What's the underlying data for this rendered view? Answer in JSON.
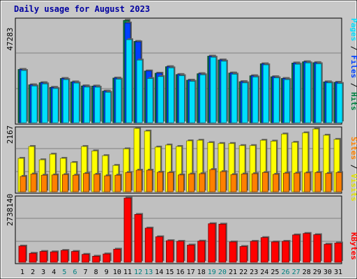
{
  "chart_data": [
    {
      "type": "bar",
      "panel": "hits-files-pages",
      "title": "Daily usage for August 2023",
      "y_max_label": "47283",
      "ylim": [
        0,
        47283
      ],
      "right_legend": [
        "Pages",
        "Files",
        "Hits"
      ],
      "colors": {
        "hits": "#008040",
        "files": "#0040ff",
        "pages": "#00e0ff"
      },
      "categories": [
        "1",
        "2",
        "3",
        "4",
        "5",
        "6",
        "7",
        "8",
        "9",
        "10",
        "11",
        "12",
        "13",
        "14",
        "15",
        "16",
        "17",
        "18",
        "19",
        "20",
        "21",
        "22",
        "23",
        "24",
        "25",
        "26",
        "27",
        "28",
        "29",
        "30",
        "31"
      ],
      "series": [
        {
          "name": "Hits",
          "values": [
            24570,
            17480,
            18450,
            16300,
            20400,
            18830,
            16980,
            16910,
            14570,
            20600,
            47200,
            37500,
            23860,
            22830,
            25830,
            22230,
            19630,
            22600,
            30690,
            28960,
            22920,
            18940,
            21650,
            27170,
            21200,
            20410,
            27530,
            28100,
            27700,
            18840,
            18640
          ]
        },
        {
          "name": "Files",
          "values": [
            24570,
            17480,
            18450,
            16300,
            20400,
            18830,
            16980,
            16910,
            14570,
            20600,
            46000,
            37300,
            23860,
            22830,
            25830,
            22230,
            19630,
            22600,
            30690,
            28960,
            22920,
            18940,
            21650,
            27170,
            21200,
            20410,
            27530,
            28100,
            27700,
            18840,
            18640
          ]
        },
        {
          "name": "Pages",
          "values": [
            24100,
            16950,
            17920,
            15800,
            19900,
            18300,
            16450,
            16400,
            14050,
            20100,
            38300,
            28900,
            20400,
            21300,
            25300,
            21700,
            19100,
            22100,
            30200,
            28400,
            22400,
            18400,
            21100,
            26700,
            20700,
            19900,
            27000,
            27600,
            27200,
            18400,
            18100
          ]
        }
      ]
    },
    {
      "type": "bar",
      "panel": "visits-sites",
      "y_max_label": "2167",
      "ylim": [
        0,
        2167
      ],
      "right_legend": [
        "Sites",
        "Visits"
      ],
      "colors": {
        "visits": "#ffff00",
        "sites": "#ff8000"
      },
      "categories": [
        "1",
        "2",
        "3",
        "4",
        "5",
        "6",
        "7",
        "8",
        "9",
        "10",
        "11",
        "12",
        "13",
        "14",
        "15",
        "16",
        "17",
        "18",
        "19",
        "20",
        "21",
        "22",
        "23",
        "24",
        "25",
        "26",
        "27",
        "28",
        "29",
        "30",
        "31"
      ],
      "series": [
        {
          "name": "Visits",
          "values": [
            1130,
            1530,
            1080,
            1270,
            1130,
            990,
            1530,
            1380,
            1220,
            890,
            1450,
            2140,
            2050,
            1510,
            1580,
            1530,
            1720,
            1740,
            1660,
            1630,
            1630,
            1560,
            1560,
            1740,
            1710,
            1950,
            1670,
            1990,
            2120,
            1910,
            1770
          ]
        },
        {
          "name": "Sites",
          "values": [
            520,
            600,
            560,
            570,
            580,
            560,
            620,
            590,
            540,
            560,
            650,
            730,
            730,
            660,
            650,
            570,
            600,
            610,
            750,
            680,
            580,
            600,
            610,
            650,
            590,
            630,
            630,
            640,
            650,
            620,
            650
          ]
        }
      ]
    },
    {
      "type": "bar",
      "panel": "kbytes",
      "y_max_label": "2738140",
      "ylim": [
        0,
        2738140
      ],
      "right_legend": [
        "KBytes"
      ],
      "colors": {
        "kbytes": "#ff0000"
      },
      "categories": [
        "1",
        "2",
        "3",
        "4",
        "5",
        "6",
        "7",
        "8",
        "9",
        "10",
        "11",
        "12",
        "13",
        "14",
        "15",
        "16",
        "17",
        "18",
        "19",
        "20",
        "21",
        "22",
        "23",
        "24",
        "25",
        "26",
        "27",
        "28",
        "29",
        "30",
        "31"
      ],
      "series": [
        {
          "name": "KBytes",
          "values": [
            780,
            430,
            520,
            500,
            570,
            520,
            380,
            290,
            400,
            630,
            3100,
            2310,
            1650,
            1230,
            1040,
            1010,
            830,
            1020,
            1860,
            1840,
            980,
            760,
            1010,
            1190,
            980,
            1010,
            1320,
            1390,
            1330,
            870,
            930
          ]
        }
      ]
    }
  ],
  "x_axis": {
    "labels": [
      "1",
      "2",
      "3",
      "4",
      "5",
      "6",
      "7",
      "8",
      "9",
      "10",
      "11",
      "12",
      "13",
      "14",
      "15",
      "16",
      "17",
      "18",
      "19",
      "20",
      "21",
      "22",
      "23",
      "24",
      "25",
      "26",
      "27",
      "28",
      "29",
      "30",
      "31"
    ],
    "weekend_days": [
      "5",
      "6",
      "12",
      "13",
      "19",
      "20",
      "26",
      "27"
    ],
    "label_color": "#000000",
    "weekend_color": "#008080"
  },
  "theme": {
    "title_color": "#0000a0",
    "plot_bg": "#c0c0c0",
    "frame_bg": "#c8c8c8"
  }
}
